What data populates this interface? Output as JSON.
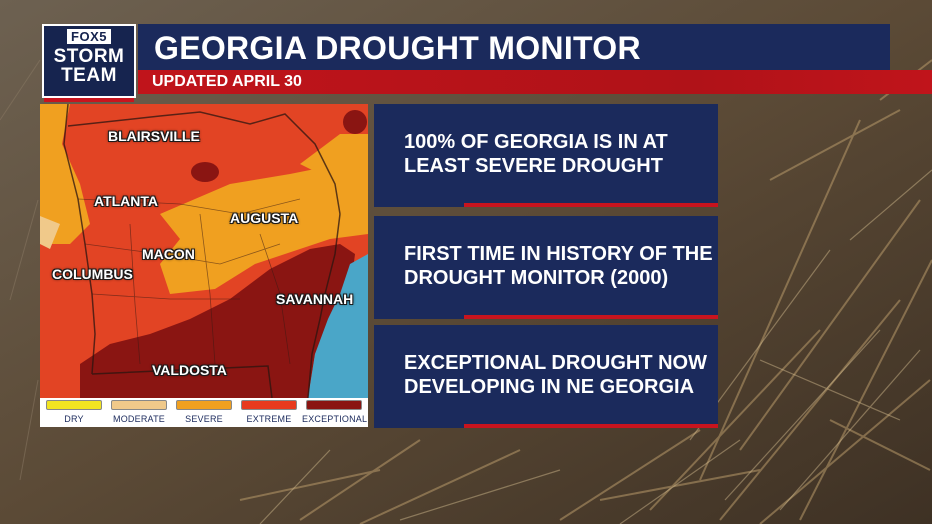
{
  "header": {
    "logo": {
      "line1": "FOX5",
      "line2": "STORM",
      "line3": "TEAM"
    },
    "title": "GEORGIA DROUGHT MONITOR",
    "subtitle": "UPDATED APRIL 30"
  },
  "map": {
    "cities": [
      {
        "id": "blairsville",
        "label": "BLAIRSVILLE"
      },
      {
        "id": "atlanta",
        "label": "ATLANTA"
      },
      {
        "id": "augusta",
        "label": "AUGUSTA"
      },
      {
        "id": "macon",
        "label": "MACON"
      },
      {
        "id": "columbus",
        "label": "COLUMBUS"
      },
      {
        "id": "savannah",
        "label": "SAVANNAH"
      },
      {
        "id": "valdosta",
        "label": "VALDOSTA"
      }
    ],
    "legend": [
      {
        "label": "DRY",
        "color": "#f2e422"
      },
      {
        "label": "MODERATE",
        "color": "#f0c98a"
      },
      {
        "label": "SEVERE",
        "color": "#f0a020"
      },
      {
        "label": "EXTREME",
        "color": "#e83a1e"
      },
      {
        "label": "EXCEPTIONAL",
        "color": "#8a1512"
      }
    ]
  },
  "cards": [
    {
      "text": "100% OF GEORGIA IS IN AT LEAST SEVERE DROUGHT"
    },
    {
      "text": "FIRST TIME IN HISTORY OF THE DROUGHT MONITOR (2000)"
    },
    {
      "text": "EXCEPTIONAL DROUGHT NOW DEVELOPING IN NE GEORGIA"
    }
  ],
  "colors": {
    "navy": "#1b2a5c",
    "red": "#c8141e",
    "water": "#4aa6c8"
  }
}
